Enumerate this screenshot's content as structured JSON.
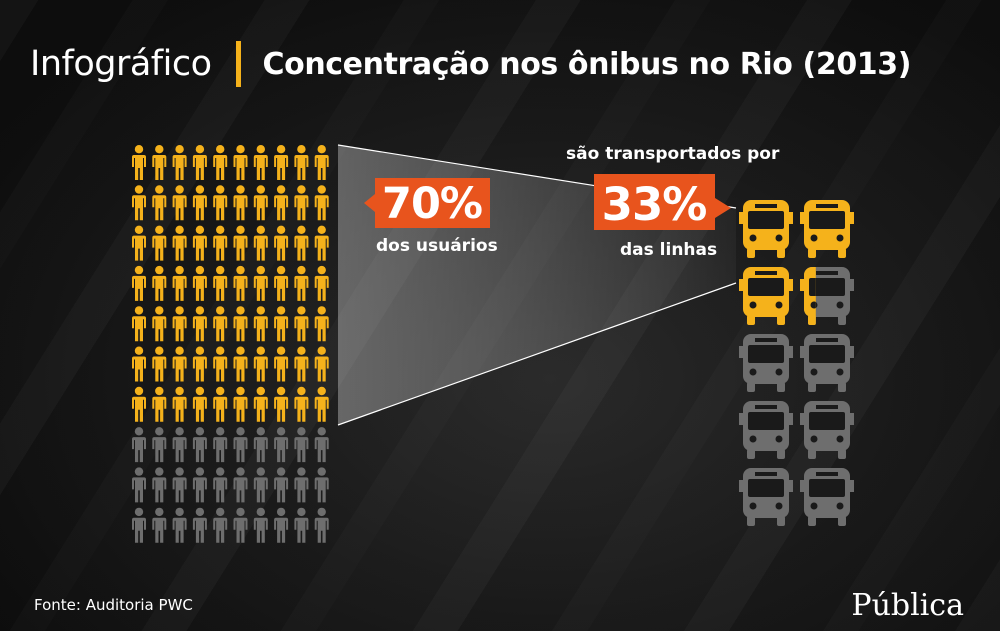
{
  "header": {
    "kicker": "Infográfico",
    "title": "Concentração nos ônibus no Rio (2013)"
  },
  "chart_data": {
    "type": "pictogram",
    "users": {
      "icon": "person-icon",
      "total": 100,
      "highlighted": 70,
      "percent_label": "70%",
      "caption": "dos usuários"
    },
    "lines": {
      "icon": "bus-icon",
      "total_icons": 10,
      "highlighted_value": 3.3,
      "percent_label": "33%",
      "caption": "das linhas"
    },
    "connector_text": "são transportados por"
  },
  "colors": {
    "highlight": "#f5b21b",
    "muted": "#6e6e6e",
    "badge": "#e8541d",
    "divider": "#f5b21b"
  },
  "footer": {
    "source": "Fonte: Auditoria PWC",
    "logo": "Pública"
  }
}
